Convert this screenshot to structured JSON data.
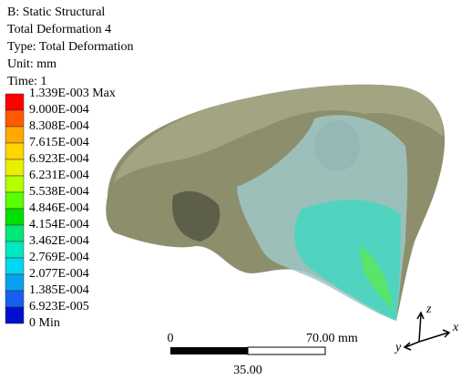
{
  "header": {
    "lines": [
      "B: Static Structural",
      "Total Deformation 4",
      "Type: Total Deformation",
      "Unit: mm",
      "Time: 1"
    ]
  },
  "legend": {
    "labels": [
      "1.339E-003 Max",
      "9.000E-004",
      "8.308E-004",
      "7.615E-004",
      "6.923E-004",
      "6.231E-004",
      "5.538E-004",
      "4.846E-004",
      "4.154E-004",
      "3.462E-004",
      "2.769E-004",
      "2.077E-004",
      "1.385E-004",
      "6.923E-005",
      "0 Min"
    ],
    "colors": [
      "#ff0000",
      "#ff5a00",
      "#ffaa00",
      "#ffd400",
      "#e8f000",
      "#b4ff00",
      "#5aff00",
      "#00e000",
      "#00e87a",
      "#00e8c0",
      "#00d8f0",
      "#0aa0f0",
      "#1560f0",
      "#0010d0"
    ]
  },
  "scale_bar": {
    "start": "0",
    "end": "70.00 mm",
    "middle": "35.00"
  },
  "triad": {
    "z": "z",
    "y": "y",
    "x": "x"
  }
}
